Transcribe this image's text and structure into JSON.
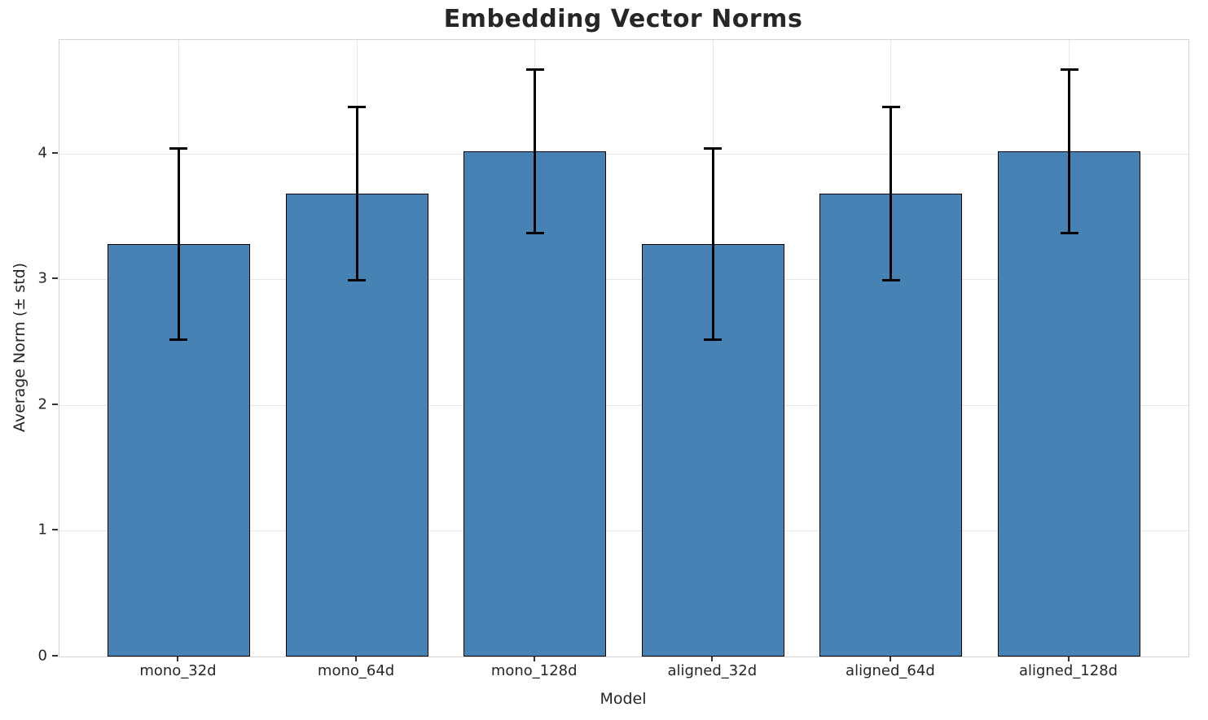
{
  "chart_data": {
    "type": "bar",
    "title": "Embedding Vector Norms",
    "xlabel": "Model",
    "ylabel": "Average Norm (± std)",
    "categories": [
      "mono_32d",
      "mono_64d",
      "mono_128d",
      "aligned_32d",
      "aligned_64d",
      "aligned_128d"
    ],
    "values": [
      3.28,
      3.68,
      4.02,
      3.28,
      3.68,
      4.02
    ],
    "errors": [
      0.76,
      0.69,
      0.65,
      0.76,
      0.69,
      0.65
    ],
    "yticks": [
      0,
      1,
      2,
      3,
      4
    ],
    "ylim": [
      0,
      4.905
    ],
    "grid": true,
    "legend_position": "none",
    "bar_color": "#4682B4",
    "bar_edge_color": "#000000",
    "error_color": "#000000",
    "background_color": "#ffffff",
    "grid_color": "#e5e5e5"
  }
}
